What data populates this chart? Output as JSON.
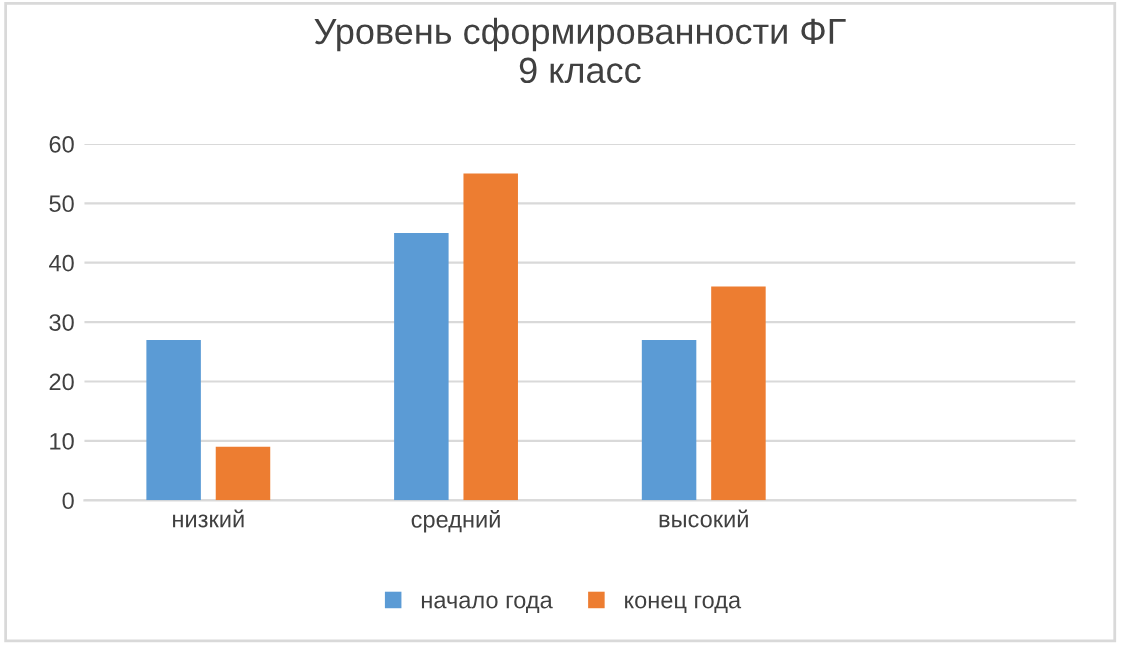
{
  "chart_data": {
    "type": "bar",
    "title": "Уровень сформированности ФГ\n9 класс",
    "categories": [
      "низкий",
      "средний",
      "высокий",
      null
    ],
    "series": [
      {
        "name": "начало года",
        "color": "#5b9bd5",
        "values": [
          27,
          45,
          27,
          null
        ]
      },
      {
        "name": "конец года",
        "color": "#ed7d31",
        "values": [
          9,
          55,
          36,
          null
        ]
      }
    ],
    "ylim": [
      0,
      60
    ],
    "yticks": [
      0,
      10,
      20,
      30,
      40,
      50,
      60
    ],
    "grid": "y",
    "legend": "bottom"
  }
}
